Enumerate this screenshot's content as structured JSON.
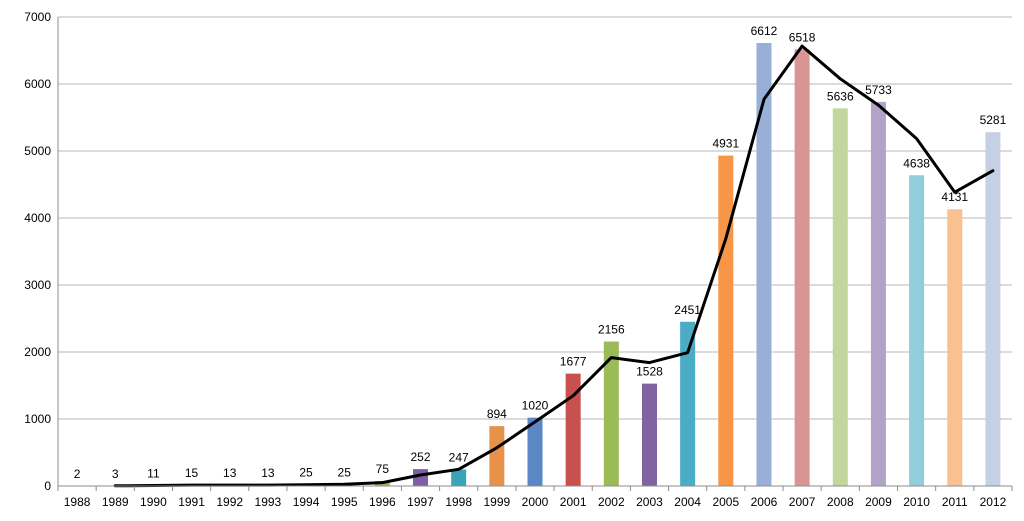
{
  "chart_data": {
    "type": "bar",
    "title": "",
    "xlabel": "",
    "ylabel": "",
    "ylim": [
      0,
      7000
    ],
    "yticks": [
      0,
      1000,
      2000,
      3000,
      4000,
      5000,
      6000,
      7000
    ],
    "grid": true,
    "legend": "none",
    "categories": [
      "1988",
      "1989",
      "1990",
      "1991",
      "1992",
      "1993",
      "1994",
      "1995",
      "1996",
      "1997",
      "1998",
      "1999",
      "2000",
      "2001",
      "2002",
      "2003",
      "2004",
      "2005",
      "2006",
      "2007",
      "2008",
      "2009",
      "2010",
      "2011",
      "2012"
    ],
    "series": [
      {
        "type": "bar",
        "values": [
          2,
          3,
          11,
          15,
          13,
          13,
          25,
          25,
          75,
          252,
          247,
          894,
          1020,
          1677,
          2156,
          1528,
          2451,
          4931,
          6612,
          6518,
          5636,
          5733,
          4638,
          4131,
          5281
        ],
        "colors": [
          "#4f81bd",
          "#c0504d",
          "#9bbb59",
          "#8064a2",
          "#4bacc6",
          "#f79646",
          "#4f81bd",
          "#c0504d",
          "#9bbb59",
          "#7e5fa7",
          "#3aa3b8",
          "#e8914a",
          "#5b87c5",
          "#c8514f",
          "#9bbb59",
          "#8064a2",
          "#4bacc6",
          "#f79646",
          "#98b0d8",
          "#d99594",
          "#c3d69b",
          "#b3a2c7",
          "#92cddc",
          "#fac090",
          "#c5d0e6"
        ]
      },
      {
        "type": "line",
        "color": "#000000",
        "values": [
          null,
          2.5,
          7,
          13,
          14,
          13,
          19,
          25,
          50,
          163.5,
          249.5,
          570.5,
          957,
          1348.5,
          1916.5,
          1842,
          1989.5,
          3691,
          5771.5,
          6565,
          6077,
          5684.5,
          5185.5,
          4384.5,
          4706
        ]
      }
    ]
  }
}
